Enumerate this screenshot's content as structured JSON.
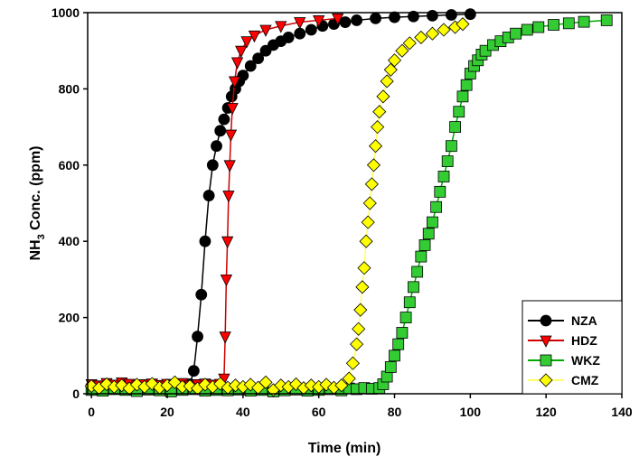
{
  "chart_data": {
    "type": "scatter",
    "xlabel": "Time (min)",
    "ylabel_main": "NH",
    "ylabel_sub": "3",
    "ylabel_rest": " Conc. (ppm)",
    "xlim": [
      -1,
      140
    ],
    "ylim": [
      0,
      1000
    ],
    "xticks": [
      0,
      20,
      40,
      60,
      80,
      100,
      120,
      140
    ],
    "yticks": [
      0,
      200,
      400,
      600,
      800,
      1000
    ],
    "grid": false,
    "legend_position": "bottom-right",
    "series": [
      {
        "name": "NZA",
        "marker": "circle",
        "color": "#000000",
        "line": "#000000",
        "points": [
          [
            0,
            20
          ],
          [
            2,
            18
          ],
          [
            4,
            22
          ],
          [
            6,
            19
          ],
          [
            8,
            21
          ],
          [
            10,
            20
          ],
          [
            12,
            18
          ],
          [
            14,
            22
          ],
          [
            16,
            20
          ],
          [
            18,
            19
          ],
          [
            20,
            21
          ],
          [
            22,
            20
          ],
          [
            24,
            22
          ],
          [
            26,
            25
          ],
          [
            27,
            60
          ],
          [
            28,
            150
          ],
          [
            29,
            260
          ],
          [
            30,
            400
          ],
          [
            31,
            520
          ],
          [
            32,
            600
          ],
          [
            33,
            650
          ],
          [
            34,
            690
          ],
          [
            35,
            720
          ],
          [
            36,
            750
          ],
          [
            37,
            780
          ],
          [
            38,
            800
          ],
          [
            39,
            820
          ],
          [
            40,
            835
          ],
          [
            42,
            860
          ],
          [
            44,
            880
          ],
          [
            46,
            900
          ],
          [
            48,
            915
          ],
          [
            50,
            925
          ],
          [
            52,
            935
          ],
          [
            55,
            945
          ],
          [
            58,
            955
          ],
          [
            61,
            965
          ],
          [
            64,
            970
          ],
          [
            67,
            975
          ],
          [
            70,
            980
          ],
          [
            75,
            985
          ],
          [
            80,
            988
          ],
          [
            85,
            990
          ],
          [
            90,
            992
          ],
          [
            95,
            994
          ],
          [
            100,
            996
          ]
        ]
      },
      {
        "name": "HDZ",
        "marker": "triangle-down",
        "color": "#ff0000",
        "line": "#cc0000",
        "points": [
          [
            0,
            25
          ],
          [
            2,
            22
          ],
          [
            4,
            28
          ],
          [
            6,
            24
          ],
          [
            8,
            30
          ],
          [
            10,
            26
          ],
          [
            12,
            22
          ],
          [
            14,
            25
          ],
          [
            16,
            27
          ],
          [
            18,
            23
          ],
          [
            20,
            26
          ],
          [
            22,
            24
          ],
          [
            24,
            28
          ],
          [
            26,
            22
          ],
          [
            28,
            25
          ],
          [
            30,
            27
          ],
          [
            32,
            24
          ],
          [
            34,
            26
          ],
          [
            35,
            40
          ],
          [
            35.3,
            150
          ],
          [
            35.6,
            300
          ],
          [
            35.9,
            400
          ],
          [
            36.2,
            520
          ],
          [
            36.5,
            600
          ],
          [
            36.8,
            680
          ],
          [
            37.2,
            750
          ],
          [
            37.8,
            820
          ],
          [
            38.5,
            870
          ],
          [
            39.5,
            900
          ],
          [
            41,
            925
          ],
          [
            43,
            940
          ],
          [
            46,
            955
          ],
          [
            50,
            965
          ],
          [
            55,
            975
          ],
          [
            60,
            980
          ],
          [
            65,
            985
          ]
        ]
      },
      {
        "name": "WKZ",
        "marker": "square",
        "color": "#33cc33",
        "line": "#00aa00",
        "points": [
          [
            0,
            10
          ],
          [
            3,
            8
          ],
          [
            6,
            12
          ],
          [
            9,
            10
          ],
          [
            12,
            7
          ],
          [
            15,
            11
          ],
          [
            18,
            9
          ],
          [
            21,
            6
          ],
          [
            24,
            10
          ],
          [
            27,
            12
          ],
          [
            30,
            8
          ],
          [
            33,
            10
          ],
          [
            36,
            9
          ],
          [
            39,
            11
          ],
          [
            42,
            8
          ],
          [
            45,
            10
          ],
          [
            48,
            6
          ],
          [
            51,
            9
          ],
          [
            54,
            11
          ],
          [
            57,
            8
          ],
          [
            60,
            10
          ],
          [
            63,
            12
          ],
          [
            66,
            9
          ],
          [
            68,
            14
          ],
          [
            70,
            12
          ],
          [
            72,
            15
          ],
          [
            74,
            13
          ],
          [
            76,
            15
          ],
          [
            77,
            25
          ],
          [
            78,
            45
          ],
          [
            79,
            70
          ],
          [
            80,
            100
          ],
          [
            81,
            130
          ],
          [
            82,
            160
          ],
          [
            83,
            200
          ],
          [
            84,
            240
          ],
          [
            85,
            280
          ],
          [
            86,
            320
          ],
          [
            87,
            360
          ],
          [
            88,
            390
          ],
          [
            89,
            420
          ],
          [
            90,
            450
          ],
          [
            91,
            490
          ],
          [
            92,
            530
          ],
          [
            93,
            570
          ],
          [
            94,
            610
          ],
          [
            95,
            650
          ],
          [
            96,
            700
          ],
          [
            97,
            740
          ],
          [
            98,
            780
          ],
          [
            99,
            810
          ],
          [
            100,
            840
          ],
          [
            101,
            860
          ],
          [
            102,
            875
          ],
          [
            103,
            890
          ],
          [
            104,
            900
          ],
          [
            106,
            915
          ],
          [
            108,
            925
          ],
          [
            110,
            935
          ],
          [
            112,
            945
          ],
          [
            115,
            955
          ],
          [
            118,
            962
          ],
          [
            122,
            968
          ],
          [
            126,
            972
          ],
          [
            130,
            976
          ],
          [
            136,
            980
          ]
        ]
      },
      {
        "name": "CMZ",
        "marker": "diamond",
        "color": "#ffff00",
        "line": "#ffff66",
        "points": [
          [
            0,
            20
          ],
          [
            2,
            15
          ],
          [
            4,
            25
          ],
          [
            6,
            18
          ],
          [
            8,
            22
          ],
          [
            10,
            14
          ],
          [
            12,
            24
          ],
          [
            14,
            18
          ],
          [
            16,
            26
          ],
          [
            18,
            16
          ],
          [
            20,
            22
          ],
          [
            22,
            30
          ],
          [
            24,
            18
          ],
          [
            26,
            20
          ],
          [
            28,
            14
          ],
          [
            30,
            24
          ],
          [
            32,
            18
          ],
          [
            34,
            26
          ],
          [
            36,
            16
          ],
          [
            38,
            22
          ],
          [
            40,
            18
          ],
          [
            42,
            24
          ],
          [
            44,
            16
          ],
          [
            46,
            30
          ],
          [
            48,
            10
          ],
          [
            50,
            22
          ],
          [
            52,
            18
          ],
          [
            54,
            25
          ],
          [
            56,
            15
          ],
          [
            58,
            22
          ],
          [
            60,
            18
          ],
          [
            62,
            24
          ],
          [
            64,
            16
          ],
          [
            66,
            22
          ],
          [
            68,
            40
          ],
          [
            69,
            80
          ],
          [
            70,
            130
          ],
          [
            70.5,
            170
          ],
          [
            71,
            220
          ],
          [
            71.5,
            280
          ],
          [
            72,
            330
          ],
          [
            72.5,
            400
          ],
          [
            73,
            450
          ],
          [
            73.5,
            500
          ],
          [
            74,
            550
          ],
          [
            74.5,
            600
          ],
          [
            75,
            650
          ],
          [
            75.5,
            700
          ],
          [
            76,
            740
          ],
          [
            77,
            780
          ],
          [
            78,
            820
          ],
          [
            79,
            850
          ],
          [
            80,
            875
          ],
          [
            82,
            900
          ],
          [
            84,
            920
          ],
          [
            87,
            935
          ],
          [
            90,
            945
          ],
          [
            93,
            955
          ],
          [
            96,
            962
          ],
          [
            98,
            970
          ]
        ]
      }
    ]
  }
}
